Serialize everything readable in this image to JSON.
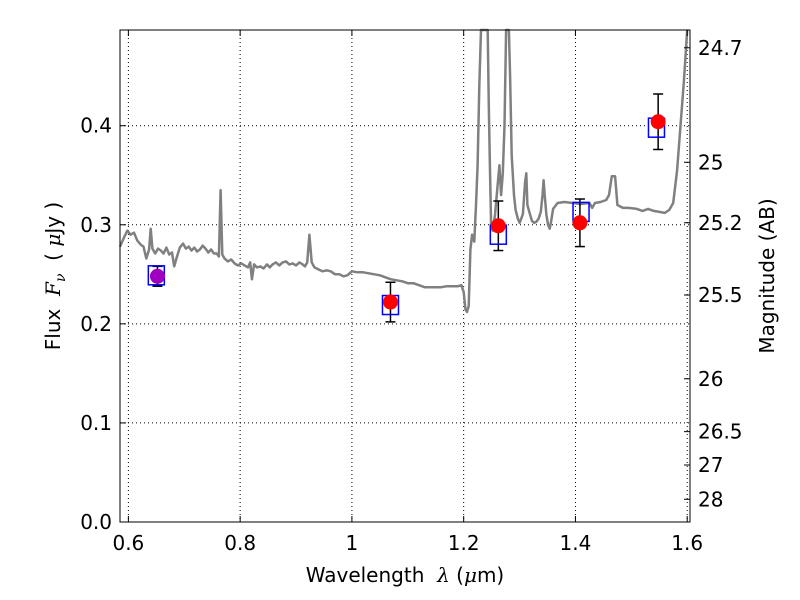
{
  "chart_data": {
    "type": "scatter",
    "xlabel": "Wavelength  λ (μm)",
    "ylabel": "Flux  F_ν  ( μJy )",
    "ylabel_parts": {
      "prefix": "Flux  ",
      "math": "F",
      "sub": "ν",
      "mid": "  ( ",
      "mu": "μ",
      "suffix": "Jy )"
    },
    "xlabel_parts": {
      "prefix": "Wavelength  ",
      "lambda": "λ",
      "mid": " (",
      "mu": "μ",
      "suffix": "m)"
    },
    "right_ylabel": "Magnitude (AB)",
    "xlim": [
      0.585,
      1.605
    ],
    "ylim": [
      0.0,
      0.4966
    ],
    "x_ticks": [
      {
        "v": 0.6,
        "label": "0.6"
      },
      {
        "v": 0.8,
        "label": "0.8"
      },
      {
        "v": 1.0,
        "label": "1"
      },
      {
        "v": 1.2,
        "label": "1.2"
      },
      {
        "v": 1.4,
        "label": "1.4"
      },
      {
        "v": 1.6,
        "label": "1.6"
      }
    ],
    "y_ticks": [
      {
        "v": 0.0,
        "label": "0.0"
      },
      {
        "v": 0.1,
        "label": "0.1"
      },
      {
        "v": 0.2,
        "label": "0.2"
      },
      {
        "v": 0.3,
        "label": "0.3"
      },
      {
        "v": 0.4,
        "label": "0.4"
      }
    ],
    "mag_ticks": [
      {
        "v": 24.7,
        "label": "24.7"
      },
      {
        "v": 25.0,
        "label": "25"
      },
      {
        "v": 25.2,
        "label": "25.2"
      },
      {
        "v": 25.5,
        "label": "25.5"
      },
      {
        "v": 26.0,
        "label": "26"
      },
      {
        "v": 26.5,
        "label": "26.5"
      },
      {
        "v": 27.0,
        "label": "27"
      },
      {
        "v": 28.0,
        "label": "28"
      }
    ],
    "grid": true,
    "grid_style": "dotted",
    "colors": {
      "model": "#808080",
      "observed": "#ff0000",
      "synthetic": "#0000ff",
      "errorbar": "#000000",
      "overlap": "#a000c0"
    },
    "series": [
      {
        "kind": "line",
        "points": [
          [
            0.585,
            0.278
          ],
          [
            0.592,
            0.287
          ],
          [
            0.598,
            0.294
          ],
          [
            0.604,
            0.29
          ],
          [
            0.61,
            0.292
          ],
          [
            0.616,
            0.284
          ],
          [
            0.622,
            0.28
          ],
          [
            0.627,
            0.278
          ],
          [
            0.632,
            0.266
          ],
          [
            0.637,
            0.275
          ],
          [
            0.64,
            0.296
          ],
          [
            0.643,
            0.276
          ],
          [
            0.648,
            0.271
          ],
          [
            0.653,
            0.276
          ],
          [
            0.658,
            0.274
          ],
          [
            0.663,
            0.271
          ],
          [
            0.668,
            0.277
          ],
          [
            0.673,
            0.27
          ],
          [
            0.678,
            0.272
          ],
          [
            0.682,
            0.258
          ],
          [
            0.686,
            0.266
          ],
          [
            0.692,
            0.277
          ],
          [
            0.698,
            0.281
          ],
          [
            0.703,
            0.276
          ],
          [
            0.708,
            0.278
          ],
          [
            0.713,
            0.274
          ],
          [
            0.718,
            0.277
          ],
          [
            0.723,
            0.273
          ],
          [
            0.728,
            0.275
          ],
          [
            0.733,
            0.279
          ],
          [
            0.738,
            0.276
          ],
          [
            0.743,
            0.272
          ],
          [
            0.748,
            0.275
          ],
          [
            0.753,
            0.271
          ],
          [
            0.758,
            0.271
          ],
          [
            0.762,
            0.268
          ],
          [
            0.765,
            0.335
          ],
          [
            0.768,
            0.27
          ],
          [
            0.772,
            0.266
          ],
          [
            0.778,
            0.263
          ],
          [
            0.784,
            0.265
          ],
          [
            0.79,
            0.261
          ],
          [
            0.796,
            0.259
          ],
          [
            0.802,
            0.261
          ],
          [
            0.808,
            0.259
          ],
          [
            0.814,
            0.257
          ],
          [
            0.818,
            0.262
          ],
          [
            0.821,
            0.245
          ],
          [
            0.825,
            0.26
          ],
          [
            0.83,
            0.257
          ],
          [
            0.836,
            0.258
          ],
          [
            0.842,
            0.256
          ],
          [
            0.848,
            0.26
          ],
          [
            0.853,
            0.257
          ],
          [
            0.858,
            0.26
          ],
          [
            0.864,
            0.262
          ],
          [
            0.87,
            0.259
          ],
          [
            0.876,
            0.262
          ],
          [
            0.882,
            0.263
          ],
          [
            0.888,
            0.26
          ],
          [
            0.894,
            0.261
          ],
          [
            0.9,
            0.259
          ],
          [
            0.906,
            0.262
          ],
          [
            0.912,
            0.26
          ],
          [
            0.916,
            0.258
          ],
          [
            0.92,
            0.262
          ],
          [
            0.924,
            0.29
          ],
          [
            0.928,
            0.262
          ],
          [
            0.933,
            0.257
          ],
          [
            0.94,
            0.255
          ],
          [
            0.947,
            0.253
          ],
          [
            0.955,
            0.254
          ],
          [
            0.962,
            0.253
          ],
          [
            0.97,
            0.25
          ],
          [
            0.978,
            0.25
          ],
          [
            0.985,
            0.248
          ],
          [
            0.992,
            0.249
          ],
          [
            1.0,
            0.253
          ],
          [
            1.01,
            0.252
          ],
          [
            1.02,
            0.252
          ],
          [
            1.03,
            0.251
          ],
          [
            1.04,
            0.25
          ],
          [
            1.05,
            0.249
          ],
          [
            1.06,
            0.247
          ],
          [
            1.07,
            0.245
          ],
          [
            1.08,
            0.244
          ],
          [
            1.09,
            0.243
          ],
          [
            1.1,
            0.241
          ],
          [
            1.11,
            0.241
          ],
          [
            1.12,
            0.239
          ],
          [
            1.13,
            0.237
          ],
          [
            1.14,
            0.237
          ],
          [
            1.15,
            0.237
          ],
          [
            1.16,
            0.237
          ],
          [
            1.17,
            0.238
          ],
          [
            1.18,
            0.238
          ],
          [
            1.19,
            0.238
          ],
          [
            1.196,
            0.239
          ],
          [
            1.2,
            0.232
          ],
          [
            1.203,
            0.215
          ],
          [
            1.206,
            0.212
          ],
          [
            1.209,
            0.218
          ],
          [
            1.212,
            0.275
          ],
          [
            1.215,
            0.29
          ],
          [
            1.219,
            0.283
          ],
          [
            1.222,
            0.32
          ],
          [
            1.225,
            0.36
          ],
          [
            1.228,
            0.44
          ],
          [
            1.231,
            0.4966
          ],
          [
            1.243,
            0.4966
          ],
          [
            1.245,
            0.42
          ],
          [
            1.247,
            0.36
          ],
          [
            1.249,
            0.3
          ],
          [
            1.252,
            0.294
          ],
          [
            1.256,
            0.31
          ],
          [
            1.26,
            0.335
          ],
          [
            1.264,
            0.36
          ],
          [
            1.267,
            0.33
          ],
          [
            1.27,
            0.352
          ],
          [
            1.273,
            0.4
          ],
          [
            1.276,
            0.4966
          ],
          [
            1.281,
            0.4966
          ],
          [
            1.283,
            0.45
          ],
          [
            1.286,
            0.37
          ],
          [
            1.29,
            0.33
          ],
          [
            1.293,
            0.315
          ],
          [
            1.297,
            0.306
          ],
          [
            1.3,
            0.302
          ],
          [
            1.303,
            0.306
          ],
          [
            1.306,
            0.311
          ],
          [
            1.31,
            0.343
          ],
          [
            1.312,
            0.352
          ],
          [
            1.314,
            0.32
          ],
          [
            1.318,
            0.312
          ],
          [
            1.322,
            0.304
          ],
          [
            1.326,
            0.302
          ],
          [
            1.33,
            0.303
          ],
          [
            1.334,
            0.306
          ],
          [
            1.338,
            0.313
          ],
          [
            1.341,
            0.33
          ],
          [
            1.343,
            0.345
          ],
          [
            1.345,
            0.33
          ],
          [
            1.348,
            0.31
          ],
          [
            1.351,
            0.3
          ],
          [
            1.354,
            0.296
          ],
          [
            1.356,
            0.302
          ],
          [
            1.36,
            0.316
          ],
          [
            1.368,
            0.322
          ],
          [
            1.38,
            0.323
          ],
          [
            1.395,
            0.322
          ],
          [
            1.41,
            0.321
          ],
          [
            1.425,
            0.322
          ],
          [
            1.43,
            0.317
          ],
          [
            1.435,
            0.322
          ],
          [
            1.445,
            0.323
          ],
          [
            1.455,
            0.325
          ],
          [
            1.46,
            0.33
          ],
          [
            1.465,
            0.349
          ],
          [
            1.471,
            0.349
          ],
          [
            1.475,
            0.32
          ],
          [
            1.485,
            0.317
          ],
          [
            1.495,
            0.317
          ],
          [
            1.51,
            0.316
          ],
          [
            1.52,
            0.314
          ],
          [
            1.53,
            0.316
          ],
          [
            1.54,
            0.314
          ],
          [
            1.55,
            0.313
          ],
          [
            1.56,
            0.312
          ],
          [
            1.568,
            0.315
          ],
          [
            1.575,
            0.322
          ],
          [
            1.582,
            0.355
          ],
          [
            1.588,
            0.4
          ],
          [
            1.594,
            0.445
          ],
          [
            1.6,
            0.4966
          ]
        ]
      },
      {
        "kind": "synthetic_photometry",
        "points": [
          [
            0.65,
            0.249
          ],
          [
            1.069,
            0.219
          ],
          [
            1.262,
            0.29
          ],
          [
            1.41,
            0.313
          ],
          [
            1.545,
            0.398
          ]
        ]
      },
      {
        "kind": "observed_photometry",
        "points": [
          {
            "x": 0.652,
            "y": 0.248,
            "err": 0.01
          },
          {
            "x": 1.069,
            "y": 0.222,
            "err": 0.02
          },
          {
            "x": 1.262,
            "y": 0.299,
            "err": 0.025
          },
          {
            "x": 1.408,
            "y": 0.302,
            "err": 0.024
          },
          {
            "x": 1.548,
            "y": 0.404,
            "err": 0.028
          }
        ]
      }
    ]
  }
}
